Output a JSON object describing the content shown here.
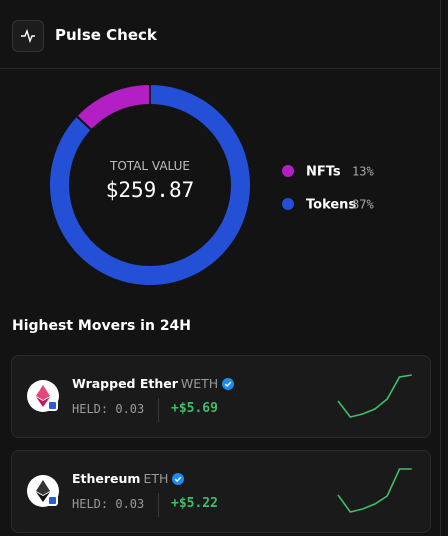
{
  "header": {
    "title": "Pulse Check"
  },
  "chart_data": {
    "type": "donut",
    "center_label": "TOTAL VALUE",
    "center_value": "$259.87",
    "categories": [
      "NFTs",
      "Tokens"
    ],
    "values": [
      13,
      87
    ],
    "value_labels": [
      "13%",
      "87%"
    ],
    "colors": [
      "#b31fc4",
      "#2450d8"
    ]
  },
  "movers": {
    "title": "Highest Movers in 24H",
    "items": [
      {
        "name": "Wrapped Ether",
        "symbol": "WETH",
        "held_label": "HELD:",
        "held": "0.03",
        "change": "+$5.69",
        "sparkline": [
          16,
          0,
          3,
          8,
          18,
          40,
          42
        ]
      },
      {
        "name": "Ethereum",
        "symbol": "ETH",
        "held_label": "HELD:",
        "held": "0.03",
        "change": "+$5.22",
        "sparkline": [
          17,
          0,
          3,
          8,
          16,
          43,
          43
        ]
      }
    ]
  }
}
